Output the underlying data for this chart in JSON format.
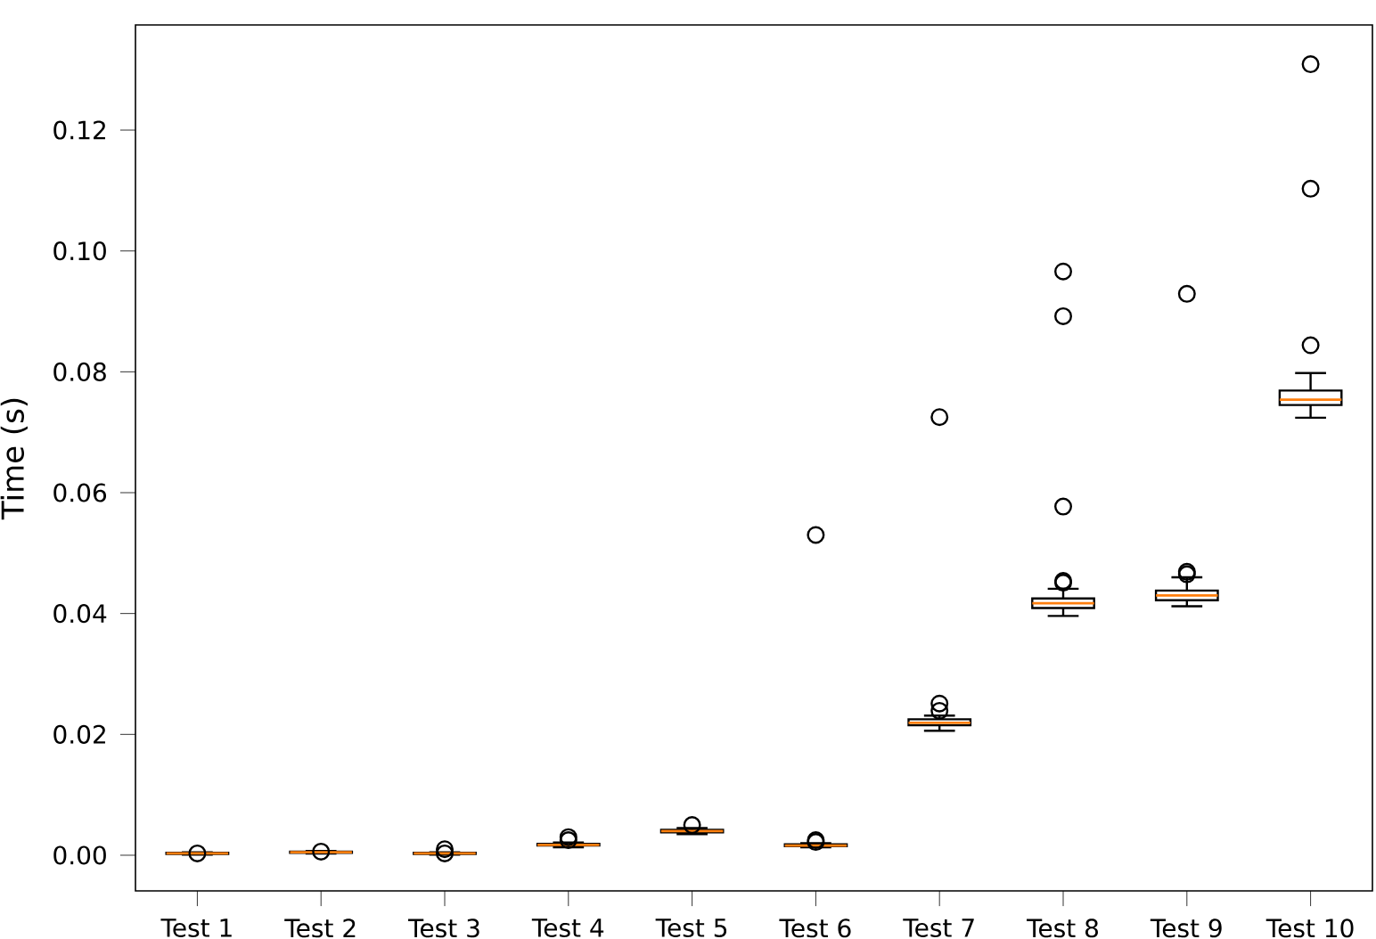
{
  "chart_data": {
    "type": "box",
    "ylabel": "Time (s)",
    "categories": [
      "Test 1",
      "Test 2",
      "Test 3",
      "Test 4",
      "Test 5",
      "Test 6",
      "Test 7",
      "Test 8",
      "Test 9",
      "Test 10"
    ],
    "color": "#000000",
    "marker": "circle",
    "ylim": [
      -0.0059,
      0.1374
    ],
    "yticks": [
      {
        "value": 0,
        "label": "0.00"
      },
      {
        "value": 0.02,
        "label": "0.02"
      },
      {
        "value": 0.04,
        "label": "0.04"
      },
      {
        "value": 0.06,
        "label": "0.06"
      },
      {
        "value": 0.08,
        "label": "0.08"
      },
      {
        "value": 0.1,
        "label": "0.10"
      },
      {
        "value": 0.12,
        "label": "0.12"
      }
    ],
    "boxes": [
      {
        "low": 0.0001,
        "q1": 0.0002,
        "median": 0.0003,
        "q3": 0.0004,
        "high": 0.0005,
        "outliers": [
          0.0003
        ]
      },
      {
        "low": 0.0003,
        "q1": 0.0004,
        "median": 0.0005,
        "q3": 0.0006,
        "high": 0.0007,
        "outliers": [
          0.0006
        ]
      },
      {
        "low": 0.0001,
        "q1": 0.0002,
        "median": 0.0003,
        "q3": 0.0004,
        "high": 0.0005,
        "outliers": [
          0.0003,
          0.001
        ]
      },
      {
        "low": 0.0013,
        "q1": 0.0016,
        "median": 0.0017,
        "q3": 0.0019,
        "high": 0.0021,
        "outliers": [
          0.0025,
          0.003
        ]
      },
      {
        "low": 0.0035,
        "q1": 0.0038,
        "median": 0.004,
        "q3": 0.0042,
        "high": 0.0045,
        "outliers": [
          0.005
        ]
      },
      {
        "low": 0.0013,
        "q1": 0.0015,
        "median": 0.0016,
        "q3": 0.0018,
        "high": 0.002,
        "outliers": [
          0.0022,
          0.0025,
          0.053
        ]
      },
      {
        "low": 0.0206,
        "q1": 0.0215,
        "median": 0.0219,
        "q3": 0.0225,
        "high": 0.0231,
        "outliers": [
          0.0239,
          0.0251,
          0.0725
        ]
      },
      {
        "low": 0.0396,
        "q1": 0.0409,
        "median": 0.0417,
        "q3": 0.0425,
        "high": 0.0441,
        "outliers": [
          0.0451,
          0.0454,
          0.0577,
          0.0892,
          0.0966
        ]
      },
      {
        "low": 0.0412,
        "q1": 0.0422,
        "median": 0.043,
        "q3": 0.0438,
        "high": 0.046,
        "outliers": [
          0.0465,
          0.0469,
          0.0929
        ]
      },
      {
        "low": 0.0724,
        "q1": 0.0745,
        "median": 0.0754,
        "q3": 0.0769,
        "high": 0.0798,
        "outliers": [
          0.0844,
          0.1103,
          0.1309
        ]
      }
    ]
  }
}
